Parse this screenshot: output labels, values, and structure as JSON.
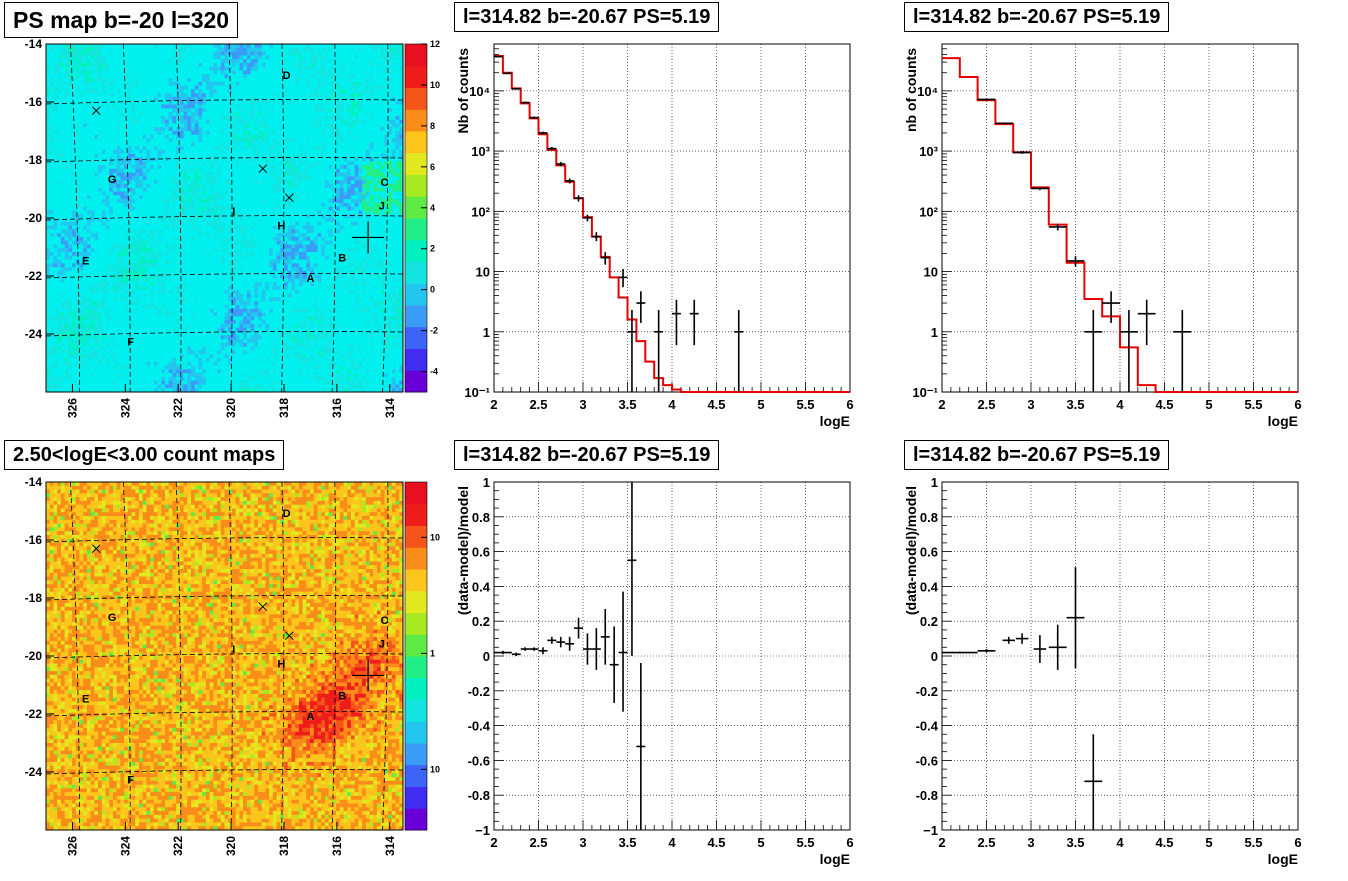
{
  "chart_data": [
    {
      "id": "ps-map",
      "type": "heatmap",
      "title": "PS map b=-20 l=320",
      "x_ticks": [
        "326",
        "324",
        "322",
        "320",
        "318",
        "316",
        "314"
      ],
      "y_ticks": [
        "-14",
        "-16",
        "-18",
        "-20",
        "-22",
        "-24"
      ],
      "xlim": [
        327,
        313.5
      ],
      "ylim": [
        -26,
        -14
      ],
      "colorbar": {
        "scale": "linear",
        "range": [
          -5,
          12
        ],
        "ticks": [
          "12",
          "10",
          "8",
          "6",
          "4",
          "2",
          "0",
          "-2",
          "-4"
        ],
        "colors": [
          "#6a00d8",
          "#3f2df2",
          "#3c64f7",
          "#3b9cf7",
          "#23c6ee",
          "#12e5e0",
          "#00f0c0",
          "#22ee88",
          "#60ea44",
          "#a8ea22",
          "#e2e81e",
          "#fcc51b",
          "#fa8c19",
          "#f5551a",
          "#ee1d1b",
          "#e8101e"
        ]
      },
      "base_color": "#00f0f0",
      "labels": [
        {
          "text": "D",
          "l": 317.9,
          "b": -15.2
        },
        {
          "text": "G",
          "l": 324.5,
          "b": -18.8
        },
        {
          "text": "C",
          "l": 314.2,
          "b": -18.9
        },
        {
          "text": "J",
          "l": 314.3,
          "b": -19.7
        },
        {
          "text": "I",
          "l": 319.9,
          "b": -19.9
        },
        {
          "text": "H",
          "l": 318.1,
          "b": -20.4
        },
        {
          "text": "E",
          "l": 325.5,
          "b": -21.6
        },
        {
          "text": "B",
          "l": 315.8,
          "b": -21.5
        },
        {
          "text": "A",
          "l": 317.0,
          "b": -22.2
        },
        {
          "text": "F",
          "l": 323.8,
          "b": -24.4
        }
      ],
      "x_markers": [
        {
          "l": 325.1,
          "b": -16.3
        },
        {
          "l": 318.8,
          "b": -18.3
        },
        {
          "l": 317.8,
          "b": -19.3
        }
      ],
      "source_marker": {
        "l": 314.82,
        "b": -20.67
      }
    },
    {
      "id": "count-map",
      "type": "heatmap",
      "title": "2.50<logE<3.00 count maps",
      "x_ticks": [
        "326",
        "324",
        "322",
        "320",
        "318",
        "316",
        "314"
      ],
      "y_ticks": [
        "-14",
        "-16",
        "-18",
        "-20",
        "-22",
        "-24"
      ],
      "xlim": [
        327,
        313.5
      ],
      "ylim": [
        -26,
        -14
      ],
      "colorbar": {
        "scale": "log",
        "range": [
          0.03,
          30
        ],
        "ticks": [
          "10",
          "1",
          "10⁻¹"
        ],
        "colors": [
          "#6a00d8",
          "#3f2df2",
          "#3c64f7",
          "#3b9cf7",
          "#23c6ee",
          "#12e5e0",
          "#00f0c0",
          "#22ee88",
          "#60ea44",
          "#a8ea22",
          "#e2e81e",
          "#fcc51b",
          "#fa8c19",
          "#f5551a",
          "#ee1d1b",
          "#e8101e"
        ]
      },
      "base_color": "#fcc51b",
      "hotspots": [
        {
          "l": 317.0,
          "b": -22.4,
          "strength": 1.0
        },
        {
          "l": 315.8,
          "b": -21.6,
          "strength": 1.0
        },
        {
          "l": 314.6,
          "b": -20.2,
          "strength": 0.6
        }
      ],
      "labels": [
        {
          "text": "D",
          "l": 317.9,
          "b": -15.2
        },
        {
          "text": "G",
          "l": 324.5,
          "b": -18.8
        },
        {
          "text": "C",
          "l": 314.2,
          "b": -18.9
        },
        {
          "text": "J",
          "l": 314.3,
          "b": -19.7
        },
        {
          "text": "I",
          "l": 319.9,
          "b": -19.9
        },
        {
          "text": "H",
          "l": 318.1,
          "b": -20.4
        },
        {
          "text": "E",
          "l": 325.5,
          "b": -21.6
        },
        {
          "text": "B",
          "l": 315.8,
          "b": -21.5
        },
        {
          "text": "A",
          "l": 317.0,
          "b": -22.2
        },
        {
          "text": "F",
          "l": 323.8,
          "b": -24.4
        }
      ],
      "x_markers": [
        {
          "l": 325.1,
          "b": -16.3
        },
        {
          "l": 318.8,
          "b": -18.3
        },
        {
          "l": 317.8,
          "b": -19.3
        }
      ],
      "source_marker": {
        "l": 314.82,
        "b": -20.67
      }
    },
    {
      "id": "spectrum-fine",
      "type": "line",
      "title": "l=314.82 b=-20.67 PS=5.19",
      "xlabel": "logE",
      "ylabel": "Nb of counts",
      "xlim": [
        2,
        6
      ],
      "ylim": [
        0.1,
        60000
      ],
      "yscale": "log",
      "x_ticks": [
        "2",
        "2.5",
        "3",
        "3.5",
        "4",
        "4.5",
        "5",
        "5.5",
        "6"
      ],
      "y_ticks": [
        {
          "v": 0.1,
          "label": "10⁻¹"
        },
        {
          "v": 1,
          "label": "1"
        },
        {
          "v": 10,
          "label": "10"
        },
        {
          "v": 100,
          "label": "10²"
        },
        {
          "v": 1000,
          "label": "10³"
        },
        {
          "v": 10000,
          "label": "10⁴"
        }
      ],
      "model_step": {
        "edges": [
          2.0,
          2.1,
          2.2,
          2.3,
          2.4,
          2.5,
          2.6,
          2.7,
          2.8,
          2.9,
          3.0,
          3.1,
          3.2,
          3.3,
          3.4,
          3.5,
          3.6,
          3.7,
          3.8,
          3.9,
          4.0,
          4.1,
          4.2,
          6.0
        ],
        "values": [
          38000,
          20000,
          11000,
          6200,
          3500,
          1900,
          1050,
          580,
          310,
          165,
          80,
          38,
          17.5,
          8,
          3.7,
          1.6,
          0.7,
          0.32,
          0.17,
          0.13,
          0.11,
          0.1,
          0.1
        ]
      },
      "data_points": [
        {
          "x": 2.05,
          "y": 37000,
          "dx": 0.05,
          "ylo": 36000,
          "yhi": 38000
        },
        {
          "x": 2.15,
          "y": 19500,
          "dx": 0.05,
          "ylo": 19000,
          "yhi": 20000
        },
        {
          "x": 2.25,
          "y": 10800,
          "dx": 0.05,
          "ylo": 10500,
          "yhi": 11100
        },
        {
          "x": 2.35,
          "y": 6400,
          "dx": 0.05,
          "ylo": 6200,
          "yhi": 6600
        },
        {
          "x": 2.45,
          "y": 3600,
          "dx": 0.05,
          "ylo": 3450,
          "yhi": 3750
        },
        {
          "x": 2.55,
          "y": 2000,
          "dx": 0.05,
          "ylo": 1900,
          "yhi": 2100
        },
        {
          "x": 2.65,
          "y": 1100,
          "dx": 0.05,
          "ylo": 1030,
          "yhi": 1170
        },
        {
          "x": 2.75,
          "y": 610,
          "dx": 0.05,
          "ylo": 560,
          "yhi": 660
        },
        {
          "x": 2.85,
          "y": 320,
          "dx": 0.05,
          "ylo": 290,
          "yhi": 350
        },
        {
          "x": 2.95,
          "y": 165,
          "dx": 0.05,
          "ylo": 145,
          "yhi": 185
        },
        {
          "x": 3.05,
          "y": 78,
          "dx": 0.05,
          "ylo": 68,
          "yhi": 88
        },
        {
          "x": 3.15,
          "y": 38,
          "dx": 0.05,
          "ylo": 32,
          "yhi": 45
        },
        {
          "x": 3.25,
          "y": 17,
          "dx": 0.05,
          "ylo": 13,
          "yhi": 21
        },
        {
          "x": 3.45,
          "y": 8,
          "dx": 0.05,
          "ylo": 5.5,
          "yhi": 11
        },
        {
          "x": 3.55,
          "y": 1,
          "dx": 0.05,
          "ylo": 0.1,
          "yhi": 2.3
        },
        {
          "x": 3.65,
          "y": 3,
          "dx": 0.05,
          "ylo": 1.4,
          "yhi": 4.7
        },
        {
          "x": 3.85,
          "y": 1,
          "dx": 0.05,
          "ylo": 0.1,
          "yhi": 2.3
        },
        {
          "x": 4.05,
          "y": 2,
          "dx": 0.05,
          "ylo": 0.6,
          "yhi": 3.4
        },
        {
          "x": 4.25,
          "y": 2,
          "dx": 0.05,
          "ylo": 0.6,
          "yhi": 3.4
        },
        {
          "x": 4.75,
          "y": 1,
          "dx": 0.05,
          "ylo": 0.1,
          "yhi": 2.3
        }
      ]
    },
    {
      "id": "spectrum-coarse",
      "type": "line",
      "title": "l=314.82 b=-20.67 PS=5.19",
      "xlabel": "logE",
      "ylabel": "nb of counts",
      "xlim": [
        2,
        6
      ],
      "ylim": [
        0.1,
        60000
      ],
      "yscale": "log",
      "x_ticks": [
        "2",
        "2.5",
        "3",
        "3.5",
        "4",
        "4.5",
        "5",
        "5.5",
        "6"
      ],
      "y_ticks": [
        {
          "v": 0.1,
          "label": "10⁻¹"
        },
        {
          "v": 1,
          "label": "1"
        },
        {
          "v": 10,
          "label": "10"
        },
        {
          "v": 100,
          "label": "10²"
        },
        {
          "v": 1000,
          "label": "10³"
        },
        {
          "v": 10000,
          "label": "10⁴"
        }
      ],
      "model_step": {
        "edges": [
          2.0,
          2.2,
          2.4,
          2.6,
          2.8,
          3.0,
          3.2,
          3.4,
          3.6,
          3.8,
          4.0,
          4.2,
          4.4,
          6.0
        ],
        "values": [
          35000,
          17000,
          7000,
          2800,
          950,
          250,
          60,
          14,
          3.5,
          1.8,
          0.55,
          0.13,
          0.1
        ]
      },
      "data_points": [
        {
          "x": 2.5,
          "y": 7200,
          "dx": 0.1,
          "ylo": 7000,
          "yhi": 7400
        },
        {
          "x": 2.7,
          "y": 2900,
          "dx": 0.1,
          "ylo": 2800,
          "yhi": 3000
        },
        {
          "x": 2.9,
          "y": 950,
          "dx": 0.1,
          "ylo": 900,
          "yhi": 1000
        },
        {
          "x": 3.1,
          "y": 240,
          "dx": 0.1,
          "ylo": 225,
          "yhi": 255
        },
        {
          "x": 3.3,
          "y": 55,
          "dx": 0.1,
          "ylo": 48,
          "yhi": 62
        },
        {
          "x": 3.5,
          "y": 15,
          "dx": 0.1,
          "ylo": 12,
          "yhi": 18
        },
        {
          "x": 3.7,
          "y": 1,
          "dx": 0.1,
          "ylo": 0.1,
          "yhi": 2.3
        },
        {
          "x": 3.9,
          "y": 3,
          "dx": 0.1,
          "ylo": 1.4,
          "yhi": 4.7
        },
        {
          "x": 4.1,
          "y": 1,
          "dx": 0.1,
          "ylo": 0.1,
          "yhi": 2.3
        },
        {
          "x": 4.3,
          "y": 2,
          "dx": 0.1,
          "ylo": 0.6,
          "yhi": 3.4
        },
        {
          "x": 4.7,
          "y": 1,
          "dx": 0.1,
          "ylo": 0.1,
          "yhi": 2.3
        }
      ]
    },
    {
      "id": "residual-fine",
      "type": "scatter",
      "title": "l=314.82 b=-20.67 PS=5.19",
      "xlabel": "logE",
      "ylabel": "(data-model)/model",
      "xlim": [
        2,
        6
      ],
      "ylim": [
        -1,
        1
      ],
      "x_ticks": [
        "2",
        "2.5",
        "3",
        "3.5",
        "4",
        "4.5",
        "5",
        "5.5",
        "6"
      ],
      "y_ticks": [
        "1",
        "0.8",
        "0.6",
        "0.4",
        "0.2",
        "0",
        "-0.2",
        "-0.4",
        "-0.6",
        "-0.8",
        "-1"
      ],
      "data_points": [
        {
          "x": 2.1,
          "y": 0.02,
          "dx": 0.1,
          "ylo": 0.01,
          "yhi": 0.03
        },
        {
          "x": 2.25,
          "y": 0.01,
          "dx": 0.05,
          "ylo": 0.0,
          "yhi": 0.02
        },
        {
          "x": 2.35,
          "y": 0.04,
          "dx": 0.05,
          "ylo": 0.03,
          "yhi": 0.05
        },
        {
          "x": 2.45,
          "y": 0.04,
          "dx": 0.05,
          "ylo": 0.03,
          "yhi": 0.05
        },
        {
          "x": 2.55,
          "y": 0.03,
          "dx": 0.05,
          "ylo": 0.01,
          "yhi": 0.05
        },
        {
          "x": 2.65,
          "y": 0.09,
          "dx": 0.05,
          "ylo": 0.07,
          "yhi": 0.11
        },
        {
          "x": 2.75,
          "y": 0.08,
          "dx": 0.05,
          "ylo": 0.05,
          "yhi": 0.11
        },
        {
          "x": 2.85,
          "y": 0.07,
          "dx": 0.05,
          "ylo": 0.03,
          "yhi": 0.11
        },
        {
          "x": 2.95,
          "y": 0.16,
          "dx": 0.05,
          "ylo": 0.1,
          "yhi": 0.22
        },
        {
          "x": 3.05,
          "y": 0.04,
          "dx": 0.05,
          "ylo": -0.05,
          "yhi": 0.13
        },
        {
          "x": 3.15,
          "y": 0.04,
          "dx": 0.05,
          "ylo": -0.08,
          "yhi": 0.16
        },
        {
          "x": 3.25,
          "y": 0.11,
          "dx": 0.05,
          "ylo": -0.05,
          "yhi": 0.27
        },
        {
          "x": 3.35,
          "y": -0.05,
          "dx": 0.05,
          "ylo": -0.27,
          "yhi": 0.17
        },
        {
          "x": 3.45,
          "y": 0.02,
          "dx": 0.05,
          "ylo": -0.32,
          "yhi": 0.37
        },
        {
          "x": 3.55,
          "y": 0.55,
          "dx": 0.05,
          "ylo": 0.0,
          "yhi": 1.0
        },
        {
          "x": 3.65,
          "y": -0.52,
          "dx": 0.05,
          "ylo": -1.0,
          "yhi": -0.04
        }
      ]
    },
    {
      "id": "residual-coarse",
      "type": "scatter",
      "title": "l=314.82 b=-20.67 PS=5.19",
      "xlabel": "logE",
      "ylabel": "(data-model)/model",
      "xlim": [
        2,
        6
      ],
      "ylim": [
        -1,
        1
      ],
      "x_ticks": [
        "2",
        "2.5",
        "3",
        "3.5",
        "4",
        "4.5",
        "5",
        "5.5",
        "6"
      ],
      "y_ticks": [
        "1",
        "0.8",
        "0.6",
        "0.4",
        "0.2",
        "0",
        "-0.2",
        "-0.4",
        "-0.6",
        "-0.8",
        "-1"
      ],
      "data_points": [
        {
          "x": 2.2,
          "y": 0.02,
          "dx": 0.2,
          "ylo": 0.015,
          "yhi": 0.025
        },
        {
          "x": 2.5,
          "y": 0.03,
          "dx": 0.1,
          "ylo": 0.02,
          "yhi": 0.04
        },
        {
          "x": 2.75,
          "y": 0.09,
          "dx": 0.07,
          "ylo": 0.07,
          "yhi": 0.11
        },
        {
          "x": 2.9,
          "y": 0.1,
          "dx": 0.07,
          "ylo": 0.07,
          "yhi": 0.13
        },
        {
          "x": 3.1,
          "y": 0.04,
          "dx": 0.07,
          "ylo": -0.04,
          "yhi": 0.12
        },
        {
          "x": 3.3,
          "y": 0.05,
          "dx": 0.1,
          "ylo": -0.08,
          "yhi": 0.18
        },
        {
          "x": 3.5,
          "y": 0.22,
          "dx": 0.1,
          "ylo": -0.07,
          "yhi": 0.51
        },
        {
          "x": 3.7,
          "y": -0.72,
          "dx": 0.1,
          "ylo": -1.0,
          "yhi": -0.45
        }
      ]
    }
  ]
}
